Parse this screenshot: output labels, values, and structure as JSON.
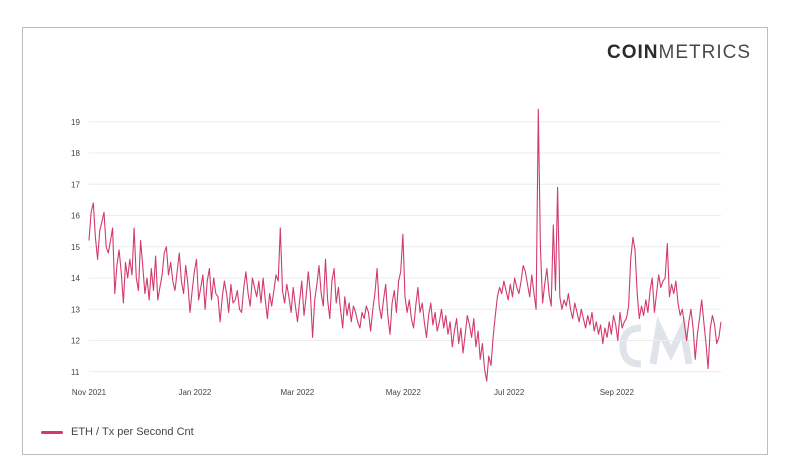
{
  "brand": {
    "bold": "COIN",
    "light": "METRICS"
  },
  "colors": {
    "line": "#d13b6a",
    "grid": "#ececec",
    "tick_text": "#444444",
    "watermark": "#dfe3ea"
  },
  "chart_data": {
    "type": "line",
    "title": "",
    "xlabel": "",
    "ylabel": "",
    "ylim": [
      10.8,
      19.6
    ],
    "yticks": [
      11,
      12,
      13,
      14,
      15,
      16,
      17,
      18,
      19
    ],
    "xticks": [
      "Nov 2021",
      "Jan 2022",
      "Mar 2022",
      "May 2022",
      "Jul 2022",
      "Sep 2022"
    ],
    "xtick_days": [
      0,
      61,
      120,
      181,
      242,
      304
    ],
    "x_domain_days": [
      0,
      364
    ],
    "grid": true,
    "legend_position": "bottom-left",
    "series": [
      {
        "name": "ETH / Tx per Second Cnt",
        "values": [
          15.2,
          16.1,
          16.4,
          15.3,
          14.6,
          15.5,
          15.8,
          16.1,
          15.0,
          14.8,
          15.2,
          15.6,
          13.5,
          14.4,
          14.9,
          14.2,
          13.2,
          14.5,
          14.0,
          14.6,
          14.1,
          15.6,
          14.0,
          13.6,
          15.2,
          14.4,
          13.5,
          14.0,
          13.3,
          14.3,
          13.6,
          14.7,
          13.3,
          13.7,
          14.1,
          14.8,
          15.0,
          14.1,
          14.5,
          13.9,
          13.6,
          14.2,
          14.8,
          13.9,
          13.5,
          14.4,
          13.8,
          12.9,
          13.6,
          14.2,
          14.6,
          13.3,
          13.7,
          14.1,
          13.0,
          13.9,
          14.3,
          13.3,
          14.0,
          13.5,
          13.4,
          12.6,
          13.4,
          13.9,
          13.5,
          12.9,
          13.8,
          13.2,
          13.3,
          13.6,
          13.0,
          12.9,
          13.7,
          14.2,
          13.5,
          13.1,
          14.0,
          13.7,
          13.4,
          13.9,
          13.2,
          14.0,
          13.3,
          12.7,
          13.5,
          13.1,
          13.6,
          14.1,
          13.9,
          15.6,
          13.6,
          13.2,
          13.8,
          13.4,
          12.9,
          13.7,
          13.1,
          12.6,
          13.3,
          13.9,
          12.8,
          13.4,
          14.2,
          13.5,
          12.1,
          13.3,
          13.8,
          14.4,
          13.5,
          13.1,
          14.6,
          13.3,
          12.7,
          13.9,
          14.3,
          13.2,
          13.7,
          13.0,
          12.4,
          13.4,
          12.8,
          13.2,
          12.6,
          13.1,
          12.9,
          12.6,
          12.4,
          12.9,
          12.7,
          13.1,
          12.9,
          12.3,
          13.0,
          13.5,
          14.3,
          13.1,
          12.7,
          13.3,
          13.8,
          12.8,
          12.2,
          13.2,
          13.6,
          12.9,
          13.9,
          14.2,
          15.4,
          13.4,
          12.9,
          13.3,
          12.7,
          12.4,
          13.1,
          13.7,
          12.9,
          13.2,
          12.6,
          12.1,
          12.8,
          13.2,
          12.5,
          12.9,
          12.3,
          12.6,
          13.0,
          12.4,
          12.8,
          12.2,
          12.6,
          11.8,
          12.3,
          12.7,
          11.9,
          12.4,
          11.6,
          12.2,
          12.8,
          12.5,
          12.1,
          12.7,
          11.8,
          12.3,
          11.4,
          11.9,
          11.1,
          10.7,
          11.5,
          11.2,
          12.1,
          12.8,
          13.4,
          13.7,
          13.5,
          13.9,
          13.6,
          13.3,
          13.8,
          13.4,
          14.0,
          13.7,
          13.5,
          13.9,
          14.4,
          14.2,
          13.8,
          13.4,
          14.1,
          13.5,
          13.0,
          19.4,
          15.0,
          13.2,
          13.8,
          14.3,
          13.5,
          13.1,
          15.7,
          13.6,
          16.9,
          13.4,
          13.0,
          13.3,
          13.1,
          13.5,
          13.0,
          12.7,
          13.2,
          12.9,
          12.6,
          13.0,
          12.7,
          12.4,
          12.8,
          12.5,
          12.9,
          12.3,
          12.6,
          12.2,
          12.5,
          11.9,
          12.4,
          12.1,
          12.6,
          12.2,
          12.8,
          12.5,
          12.0,
          12.9,
          12.4,
          12.6,
          12.7,
          13.1,
          14.6,
          15.3,
          14.9,
          13.5,
          12.7,
          13.1,
          12.8,
          13.3,
          12.9,
          13.6,
          14.0,
          12.9,
          13.5,
          14.1,
          13.7,
          13.9,
          14.0,
          15.1,
          13.4,
          13.8,
          13.5,
          13.9,
          13.2,
          12.8,
          13.0,
          12.5,
          12.0,
          12.6,
          13.0,
          12.4,
          11.4,
          12.2,
          12.7,
          13.3,
          12.6,
          11.9,
          11.1,
          12.4,
          12.8,
          12.5,
          11.9,
          12.1,
          12.6
        ]
      }
    ]
  }
}
